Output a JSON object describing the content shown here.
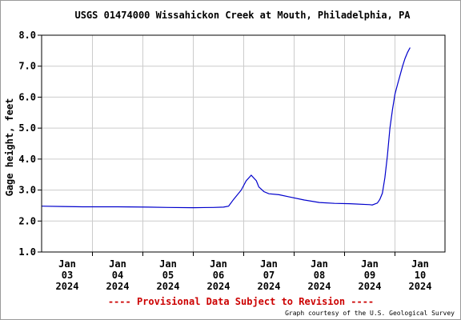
{
  "chart_data": {
    "type": "line",
    "title": "USGS 01474000 Wissahickon Creek at Mouth, Philadelphia, PA",
    "ylabel": "Gage height, feet",
    "xlabel": "",
    "ylim": [
      1.0,
      8.0
    ],
    "yticks": [
      "1.0",
      "2.0",
      "3.0",
      "4.0",
      "5.0",
      "6.0",
      "7.0",
      "8.0"
    ],
    "xlim": [
      0,
      7.5
    ],
    "xticks": [
      {
        "x": 0,
        "lines": [
          "Jan",
          "03",
          "2024"
        ]
      },
      {
        "x": 1,
        "lines": [
          "Jan",
          "04",
          "2024"
        ]
      },
      {
        "x": 2,
        "lines": [
          "Jan",
          "05",
          "2024"
        ]
      },
      {
        "x": 3,
        "lines": [
          "Jan",
          "06",
          "2024"
        ]
      },
      {
        "x": 4,
        "lines": [
          "Jan",
          "07",
          "2024"
        ]
      },
      {
        "x": 5,
        "lines": [
          "Jan",
          "08",
          "2024"
        ]
      },
      {
        "x": 6,
        "lines": [
          "Jan",
          "09",
          "2024"
        ]
      },
      {
        "x": 7,
        "lines": [
          "Jan",
          "10",
          "2024"
        ]
      }
    ],
    "grid": true,
    "line_color": "#0000cc",
    "series": [
      {
        "x": [
          -0.5,
          -0.1,
          0.3,
          1.0,
          1.6,
          2.0,
          2.5,
          2.9,
          3.1,
          3.2,
          3.3,
          3.45,
          3.55,
          3.65,
          3.75,
          3.8,
          3.9,
          4.0,
          4.2,
          4.4,
          4.7,
          5.0,
          5.3,
          5.6,
          6.0,
          6.05,
          6.15,
          6.2,
          6.25,
          6.3,
          6.35,
          6.4,
          6.45,
          6.5,
          6.55,
          6.6,
          6.65,
          6.7,
          6.75,
          6.8
        ],
        "y": [
          2.48,
          2.47,
          2.46,
          2.46,
          2.45,
          2.44,
          2.43,
          2.44,
          2.45,
          2.48,
          2.7,
          3.0,
          3.3,
          3.48,
          3.3,
          3.1,
          2.95,
          2.88,
          2.85,
          2.78,
          2.68,
          2.6,
          2.57,
          2.56,
          2.53,
          2.52,
          2.58,
          2.7,
          2.9,
          3.4,
          4.1,
          5.0,
          5.6,
          6.1,
          6.4,
          6.7,
          7.0,
          7.25,
          7.45,
          7.6
        ]
      }
    ]
  },
  "footer": {
    "provisional_notice": "---- Provisional Data Subject to Revision ----",
    "credit": "Graph courtesy of the U.S. Geological Survey"
  },
  "colors": {
    "line": "#0000cc",
    "grid": "#cccccc",
    "axis": "#000000",
    "notice": "#cc0000"
  }
}
